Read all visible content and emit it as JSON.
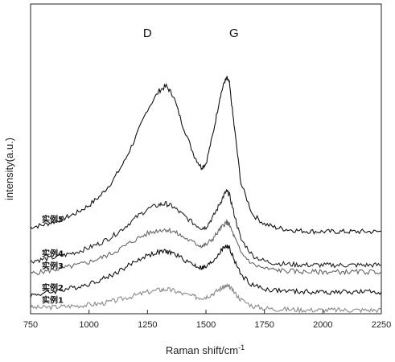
{
  "chart_data": {
    "type": "line",
    "xlabel": "Raman shift/cm",
    "xlabel_superscript": "-1",
    "ylabel": "intensity(a.u.)",
    "xlim": [
      750,
      2250
    ],
    "ylim": [
      0,
      1
    ],
    "x_ticks": [
      750,
      1000,
      1250,
      1500,
      1750,
      2000,
      2250
    ],
    "y_ticks_shown": false,
    "grid": false,
    "legend": "none (series labelled inline on the left)",
    "annotations": [
      {
        "text": "D",
        "x": 1250
      },
      {
        "text": "G",
        "x": 1620
      }
    ],
    "x": [
      750,
      800,
      850,
      900,
      950,
      1000,
      1050,
      1100,
      1150,
      1200,
      1250,
      1300,
      1330,
      1360,
      1400,
      1450,
      1480,
      1500,
      1530,
      1560,
      1580,
      1590,
      1600,
      1620,
      1650,
      1700,
      1750,
      1800,
      1850,
      1900,
      1950,
      2000,
      2050,
      2100,
      2150,
      2200,
      2250
    ],
    "series": [
      {
        "name": "实例1",
        "color": "#8a8a8a",
        "values": [
          0.02,
          0.02,
          0.022,
          0.024,
          0.026,
          0.029,
          0.033,
          0.04,
          0.05,
          0.06,
          0.07,
          0.077,
          0.079,
          0.075,
          0.065,
          0.055,
          0.052,
          0.055,
          0.065,
          0.08,
          0.088,
          0.089,
          0.087,
          0.07,
          0.045,
          0.025,
          0.018,
          0.015,
          0.014,
          0.013,
          0.012,
          0.012,
          0.012,
          0.012,
          0.012,
          0.012,
          0.012
        ]
      },
      {
        "name": "实例2",
        "color": "#111111",
        "values": [
          0.06,
          0.065,
          0.072,
          0.079,
          0.087,
          0.097,
          0.11,
          0.126,
          0.147,
          0.17,
          0.189,
          0.199,
          0.201,
          0.195,
          0.178,
          0.157,
          0.148,
          0.15,
          0.17,
          0.199,
          0.217,
          0.218,
          0.212,
          0.175,
          0.125,
          0.092,
          0.08,
          0.075,
          0.073,
          0.071,
          0.07,
          0.07,
          0.07,
          0.07,
          0.07,
          0.07,
          0.07
        ]
      },
      {
        "name": "实例3",
        "color": "#666666",
        "values": [
          0.13,
          0.135,
          0.142,
          0.149,
          0.157,
          0.167,
          0.18,
          0.196,
          0.217,
          0.24,
          0.259,
          0.27,
          0.272,
          0.266,
          0.249,
          0.228,
          0.219,
          0.222,
          0.243,
          0.272,
          0.291,
          0.294,
          0.288,
          0.25,
          0.197,
          0.16,
          0.146,
          0.141,
          0.138,
          0.136,
          0.135,
          0.135,
          0.135,
          0.135,
          0.135,
          0.135,
          0.135
        ]
      },
      {
        "name": "实例4",
        "color": "#222222",
        "values": [
          0.17,
          0.175,
          0.182,
          0.19,
          0.2,
          0.213,
          0.229,
          0.25,
          0.278,
          0.31,
          0.338,
          0.352,
          0.355,
          0.345,
          0.32,
          0.29,
          0.277,
          0.28,
          0.312,
          0.356,
          0.388,
          0.395,
          0.385,
          0.324,
          0.24,
          0.188,
          0.17,
          0.163,
          0.16,
          0.158,
          0.157,
          0.157,
          0.157,
          0.157,
          0.157,
          0.157,
          0.157
        ]
      },
      {
        "name": "实例5",
        "color": "#111111",
        "values": [
          0.28,
          0.286,
          0.297,
          0.31,
          0.327,
          0.35,
          0.382,
          0.428,
          0.49,
          0.57,
          0.66,
          0.72,
          0.735,
          0.705,
          0.61,
          0.51,
          0.472,
          0.485,
          0.58,
          0.7,
          0.75,
          0.76,
          0.745,
          0.61,
          0.42,
          0.32,
          0.29,
          0.278,
          0.272,
          0.268,
          0.266,
          0.265,
          0.265,
          0.265,
          0.265,
          0.265,
          0.265
        ]
      }
    ]
  }
}
